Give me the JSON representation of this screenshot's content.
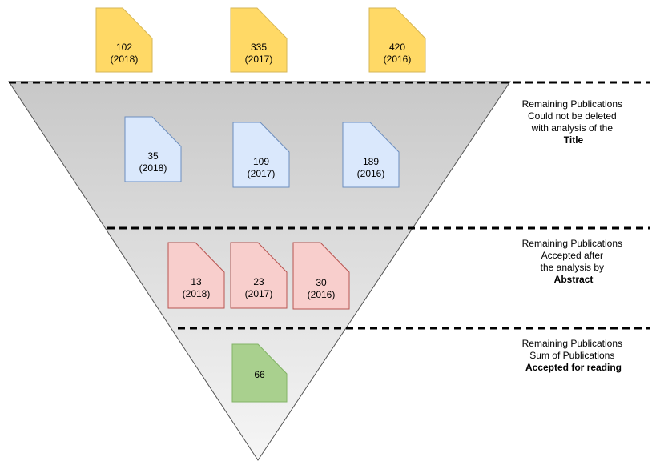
{
  "colors": {
    "yellow_fill": "#ffd966",
    "yellow_stroke": "#d6b656",
    "blue_fill": "#dae8fc",
    "blue_stroke": "#6c8ebf",
    "red_fill": "#f8cecc",
    "red_stroke": "#b85450",
    "green_fill": "#a9d08e",
    "green_stroke": "#82b366",
    "funnel_top": "#c8c8c8",
    "funnel_bottom": "#f6f6f6"
  },
  "initial": {
    "docs": [
      {
        "count": "102",
        "year": "(2018)"
      },
      {
        "count": "335",
        "year": "(2017)"
      },
      {
        "count": "420",
        "year": "(2016)"
      }
    ]
  },
  "title_stage": {
    "docs": [
      {
        "count": "35",
        "year": "(2018)"
      },
      {
        "count": "109",
        "year": "(2017)"
      },
      {
        "count": "189",
        "year": "(2016)"
      }
    ],
    "label": {
      "line1": "Remaining Publications",
      "line2": "Could not be deleted",
      "line3": "with analysis of the",
      "bold": "Title"
    }
  },
  "abstract_stage": {
    "docs": [
      {
        "count": "13",
        "year": "(2018)"
      },
      {
        "count": "23",
        "year": "(2017)"
      },
      {
        "count": "30",
        "year": "(2016)"
      }
    ],
    "label": {
      "line1": "Remaining Publications",
      "line2": "Accepted after",
      "line3": "the analysis by",
      "bold": "Abstract"
    }
  },
  "reading_stage": {
    "docs": [
      {
        "count": "66"
      }
    ],
    "label": {
      "line1": "Remaining Publications",
      "line2": "Sum of Publications",
      "bold": "Accepted for reading"
    }
  }
}
